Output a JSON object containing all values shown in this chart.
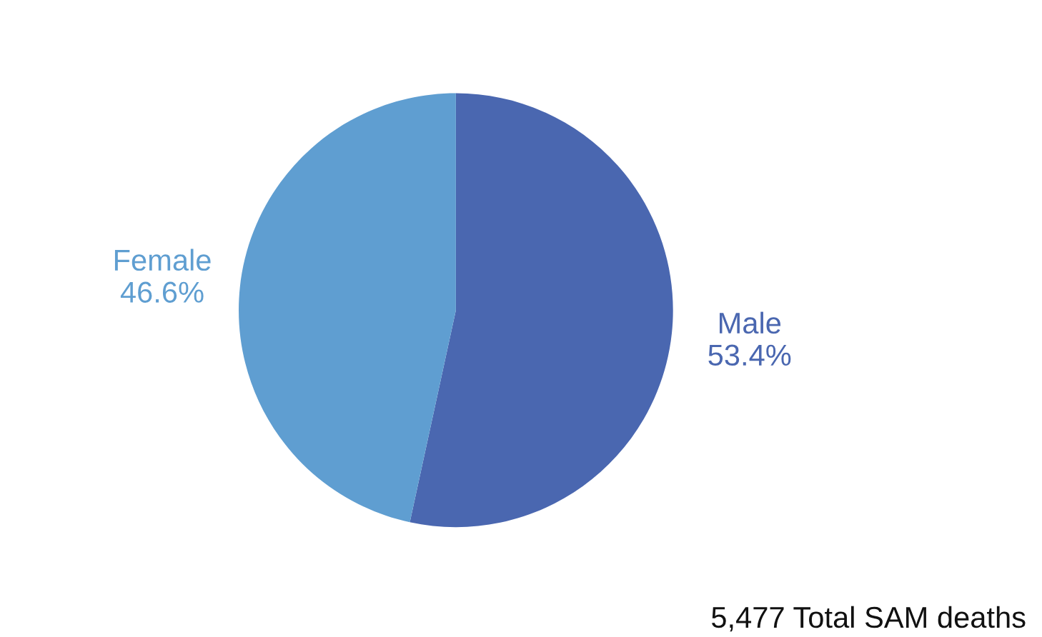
{
  "chart_data": {
    "type": "pie",
    "categories": [
      "Male",
      "Female"
    ],
    "values": [
      53.4,
      46.6
    ],
    "value_labels": [
      "53.4%",
      "46.6%"
    ],
    "colors": [
      "#4a67b0",
      "#5f9ed1"
    ],
    "annotations": [
      "5,477 Total SAM deaths"
    ],
    "legend": false
  }
}
